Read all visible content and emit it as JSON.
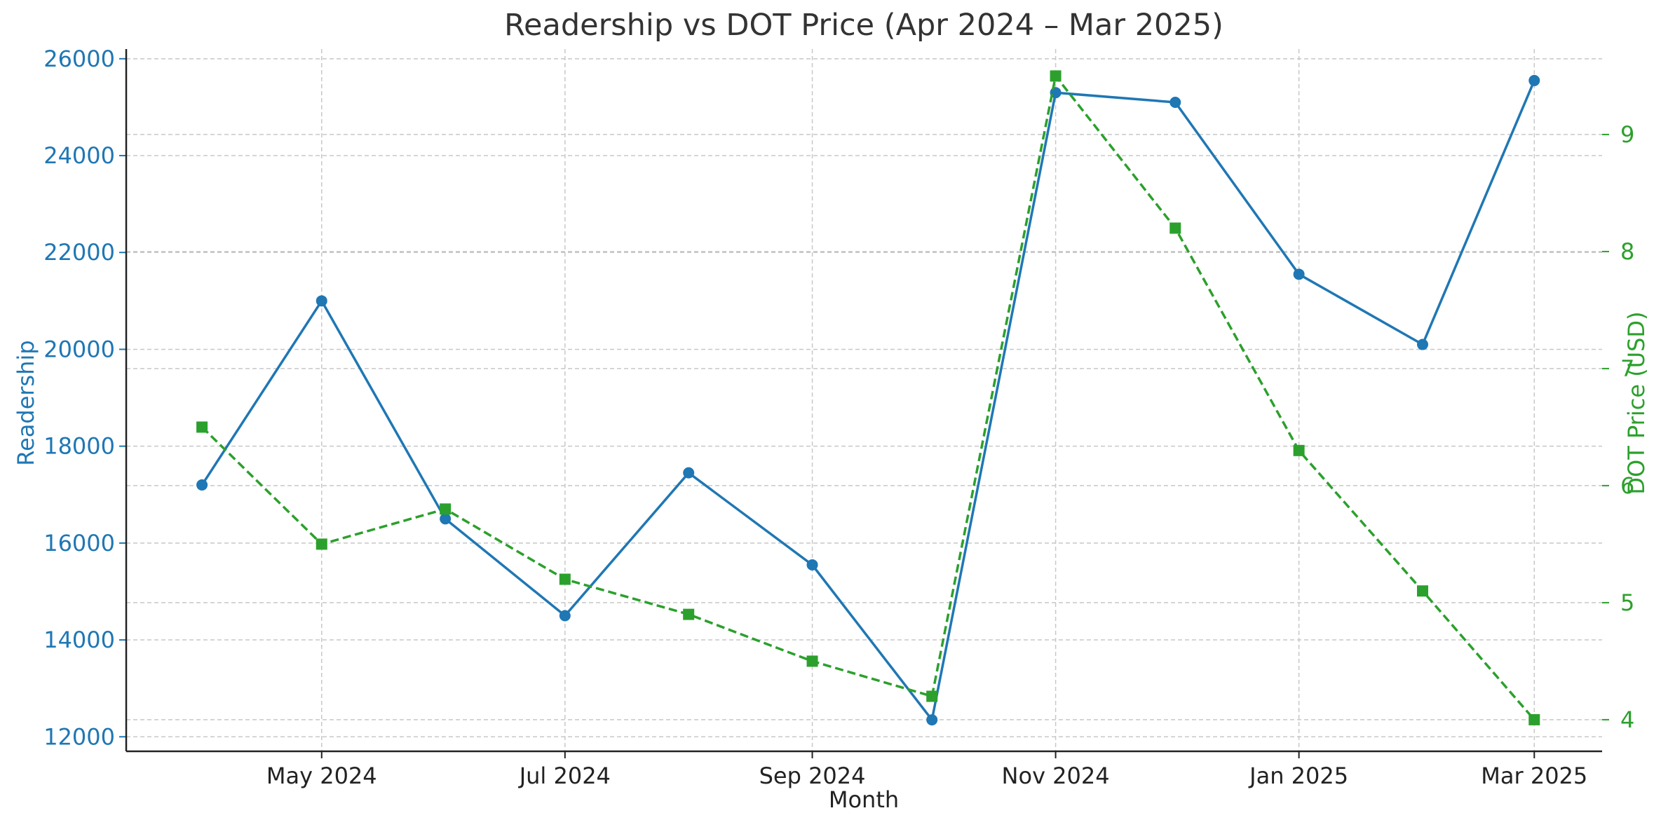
{
  "chart_data": {
    "type": "line",
    "title": "Readership vs DOT Price (Apr 2024 – Mar 2025)",
    "xlabel": "Month",
    "ylabel_left": "Readership",
    "ylabel_right": "DOT Price (USD)",
    "x": [
      "2024-04-01",
      "2024-05-01",
      "2024-06-01",
      "2024-07-01",
      "2024-08-01",
      "2024-09-01",
      "2024-10-01",
      "2024-11-01",
      "2024-12-01",
      "2025-01-01",
      "2025-02-01",
      "2025-03-01"
    ],
    "x_tick_labels": [
      {
        "x": "2024-05-01",
        "label": "May 2024"
      },
      {
        "x": "2024-07-01",
        "label": "Jul 2024"
      },
      {
        "x": "2024-09-01",
        "label": "Sep 2024"
      },
      {
        "x": "2024-11-01",
        "label": "Nov 2024"
      },
      {
        "x": "2025-01-01",
        "label": "Jan 2025"
      },
      {
        "x": "2025-03-01",
        "label": "Mar 2025"
      }
    ],
    "xlim": [
      "2024-03-13",
      "2025-03-18"
    ],
    "ylim_left": [
      11700,
      26200
    ],
    "ylim_right": [
      3.73,
      9.73
    ],
    "yticks_left": [
      12000,
      14000,
      16000,
      18000,
      20000,
      22000,
      24000,
      26000
    ],
    "yticks_right": [
      4,
      5,
      6,
      7,
      8,
      9
    ],
    "grid": true,
    "series": [
      {
        "axis": "left",
        "color": "#1f77b4",
        "style": "solid",
        "marker": "circle",
        "values": [
          17200,
          21000,
          16500,
          14500,
          17450,
          15550,
          12350,
          25300,
          25100,
          21550,
          20100,
          25550
        ]
      },
      {
        "axis": "right",
        "color": "#2ca02c",
        "style": "dashed",
        "marker": "square",
        "values": [
          6.5,
          5.5,
          5.8,
          5.2,
          4.9,
          4.5,
          4.2,
          9.5,
          8.2,
          6.3,
          5.1,
          4.0
        ]
      }
    ]
  }
}
